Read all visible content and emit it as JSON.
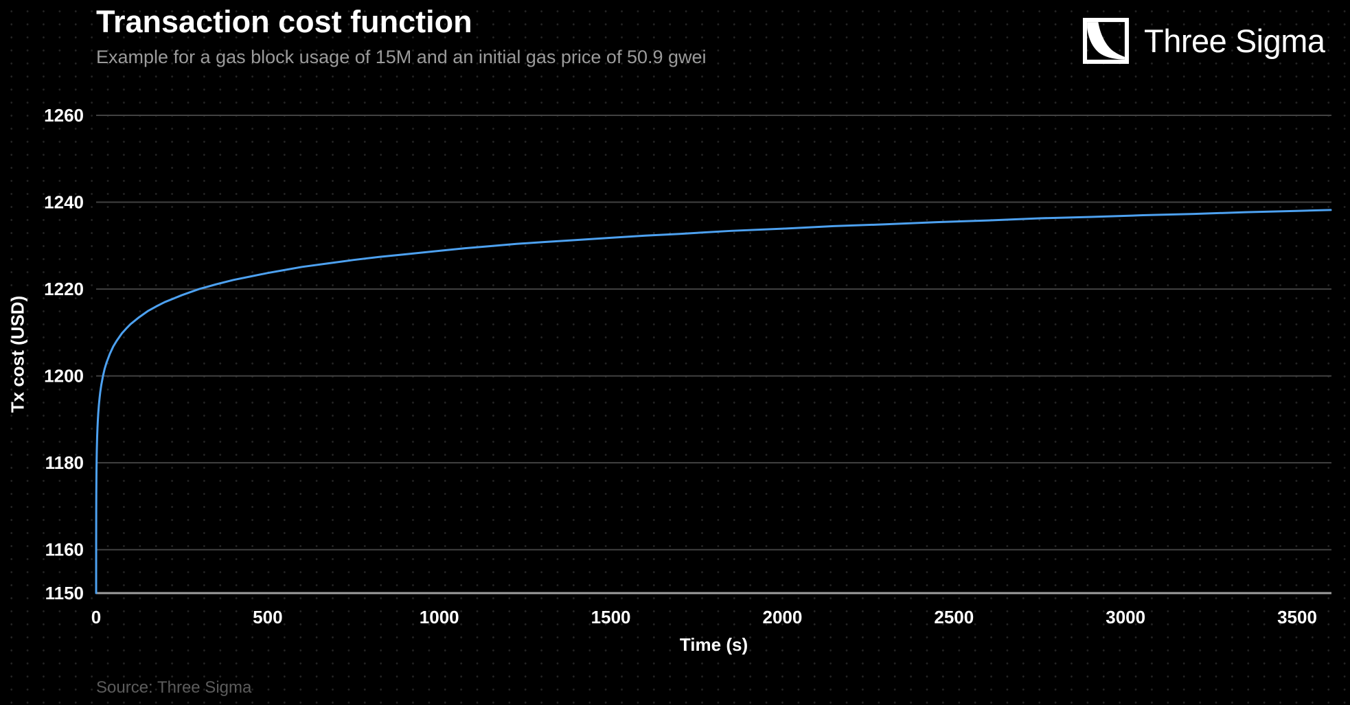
{
  "brand": {
    "name": "Three Sigma",
    "logo_icon": "decay-curve-square-icon"
  },
  "colors": {
    "background": "#000000",
    "line": "#4DA1F0",
    "grid": "#424242",
    "axis": "#9e9e9e",
    "title": "#ffffff",
    "subtitle": "#9b9b9b",
    "tick_label": "#ffffff",
    "source": "#5c5c5c",
    "dot_grid": "#242424"
  },
  "chart_data": {
    "type": "line",
    "title": "Transaction cost function",
    "subtitle": "Example for a gas block usage of 15M and an initial gas price of 50.9 gwei",
    "xlabel": "Time (s)",
    "ylabel": "Tx cost (USD)",
    "source": "Source: Three Sigma",
    "xlim": [
      0,
      3600
    ],
    "ylim": [
      1150,
      1260
    ],
    "x_ticks": [
      0,
      500,
      1000,
      1500,
      2000,
      2500,
      3000,
      3500
    ],
    "y_ticks": [
      1150,
      1160,
      1180,
      1200,
      1220,
      1240,
      1260
    ],
    "grid": "horizontal-only",
    "legend": "none",
    "series": [
      {
        "name": "Tx cost",
        "x": [
          0.02,
          0.1,
          0.3,
          0.5,
          1,
          1.5,
          2,
          3,
          4,
          5,
          6,
          8,
          10,
          12,
          15,
          20,
          25,
          30,
          40,
          50,
          60,
          75,
          90,
          100,
          125,
          150,
          175,
          200,
          250,
          300,
          350,
          400,
          450,
          500,
          550,
          600,
          675,
          750,
          825,
          900,
          1000,
          1075,
          1150,
          1225,
          1300,
          1400,
          1500,
          1600,
          1700,
          1850,
          2000,
          2150,
          2300,
          2450,
          2600,
          2750,
          2900,
          3050,
          3200,
          3350,
          3500,
          3598
        ],
        "y": [
          1150.0,
          1161.1,
          1169.1,
          1172.9,
          1178.0,
          1181.0,
          1183.1,
          1186.1,
          1188.2,
          1189.8,
          1191.2,
          1193.3,
          1194.9,
          1196.3,
          1197.9,
          1200.0,
          1201.7,
          1203.0,
          1205.1,
          1206.8,
          1208.1,
          1209.8,
          1211.1,
          1211.9,
          1213.5,
          1214.9,
          1216.0,
          1217.0,
          1218.6,
          1220.0,
          1221.1,
          1222.1,
          1222.9,
          1223.7,
          1224.4,
          1225.1,
          1225.9,
          1226.7,
          1227.4,
          1228.0,
          1228.8,
          1229.4,
          1229.9,
          1230.4,
          1230.8,
          1231.3,
          1231.8,
          1232.3,
          1232.7,
          1233.4,
          1233.9,
          1234.5,
          1234.9,
          1235.4,
          1235.8,
          1236.3,
          1236.6,
          1237.0,
          1237.3,
          1237.7,
          1238.0,
          1238.2
        ]
      }
    ]
  }
}
